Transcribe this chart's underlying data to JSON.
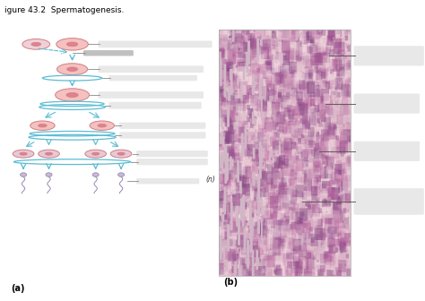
{
  "title": "igure 43.2  Spermatogenesis.",
  "title_fontsize": 6.5,
  "bg_color": "#ffffff",
  "panel_a_label": "(a)",
  "panel_b_label": "(b)",
  "label_box_color": "#e8e8e8",
  "label_box_color2": "#c0c0c0",
  "arrow_color": "#5bbcd4",
  "line_color": "#888888",
  "cell_fill": "#f5c0c0",
  "cell_edge": "#d08080",
  "cell_fill_small": "#f0d0d8",
  "nucleus_fill": "#e08090",
  "nucleus_ring": "#d07080",
  "spermatid_fill": "#e8c8d8",
  "sperm_fill": "#c8b8d8",
  "sperm_edge": "#9080a8",
  "ellipse_color": "#5bbcd4"
}
